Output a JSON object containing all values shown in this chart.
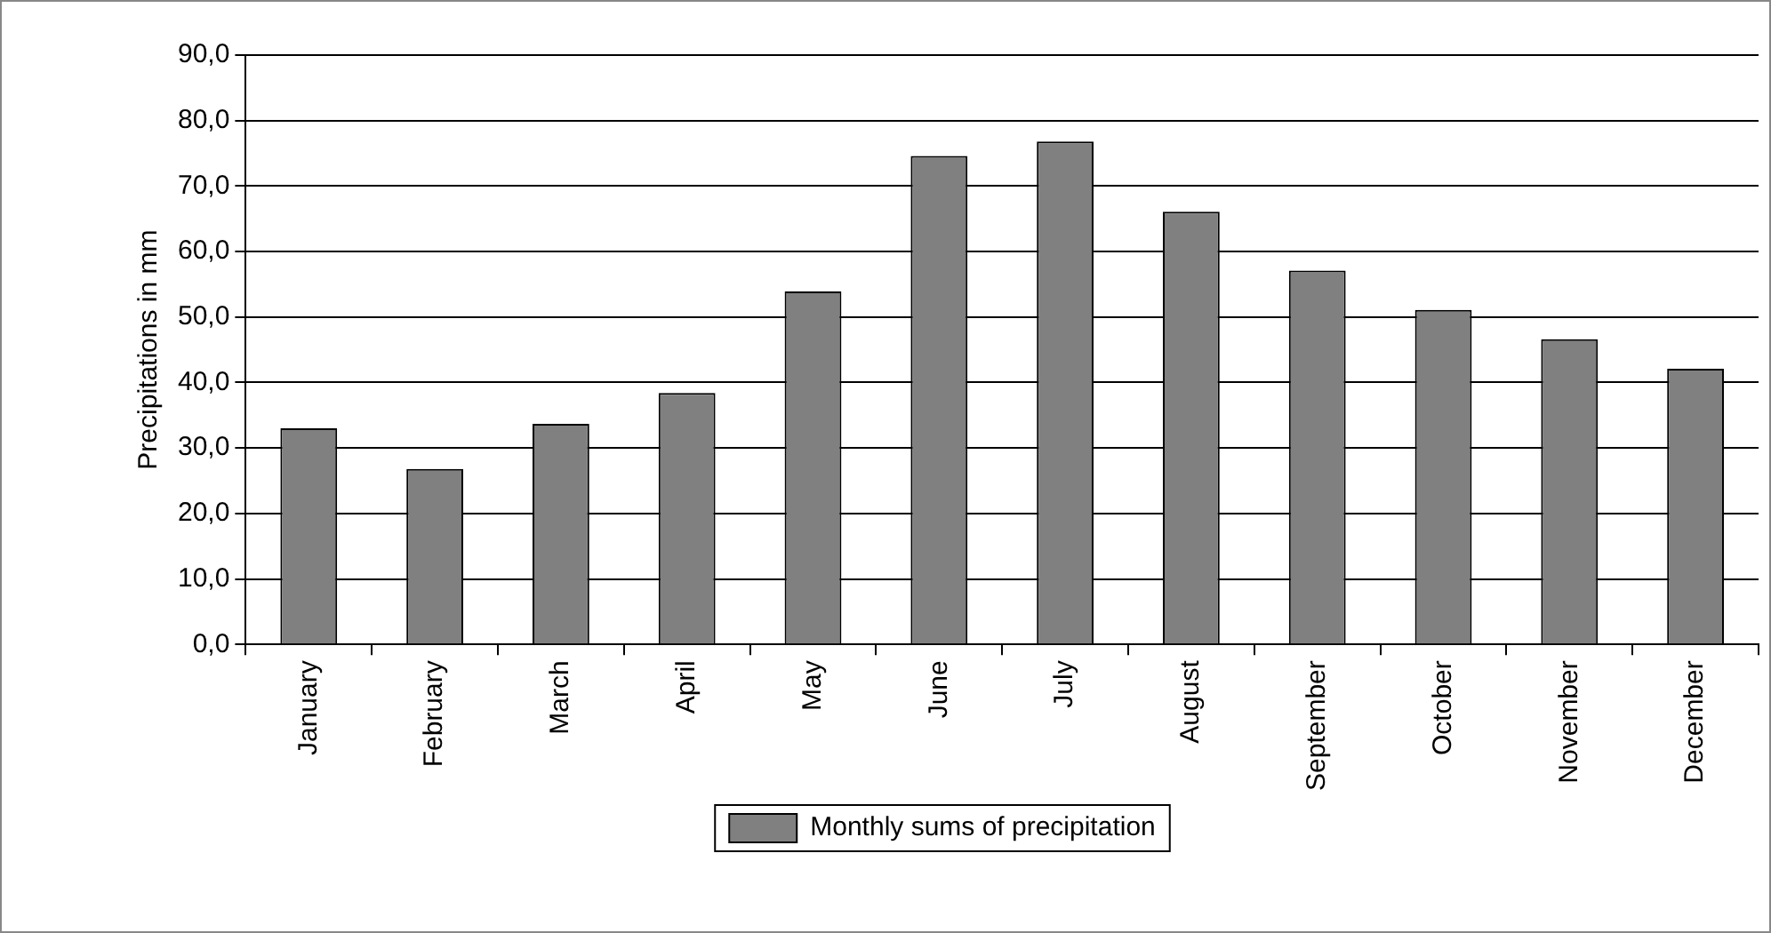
{
  "chart_data": {
    "type": "bar",
    "ylabel": "Precipitations in mm",
    "categories": [
      "January",
      "February",
      "March",
      "April",
      "May",
      "June",
      "July",
      "August",
      "September",
      "October",
      "November",
      "December"
    ],
    "series": [
      {
        "name": "Monthly sums of precipitation",
        "color": "#808080",
        "values": [
          33.0,
          26.8,
          33.7,
          38.4,
          53.9,
          74.6,
          76.8,
          66.1,
          57.1,
          51.1,
          46.6,
          42.1
        ]
      }
    ],
    "ylim": [
      0,
      90
    ],
    "yticks": [
      {
        "value": 0,
        "label": "0,0"
      },
      {
        "value": 10,
        "label": "10,0"
      },
      {
        "value": 20,
        "label": "20,0"
      },
      {
        "value": 30,
        "label": "30,0"
      },
      {
        "value": 40,
        "label": "40,0"
      },
      {
        "value": 50,
        "label": "50,0"
      },
      {
        "value": 60,
        "label": "60,0"
      },
      {
        "value": 70,
        "label": "70,0"
      },
      {
        "value": 80,
        "label": "80,0"
      },
      {
        "value": 90,
        "label": "90,0"
      }
    ],
    "grid": "y",
    "legend": "bottom"
  }
}
